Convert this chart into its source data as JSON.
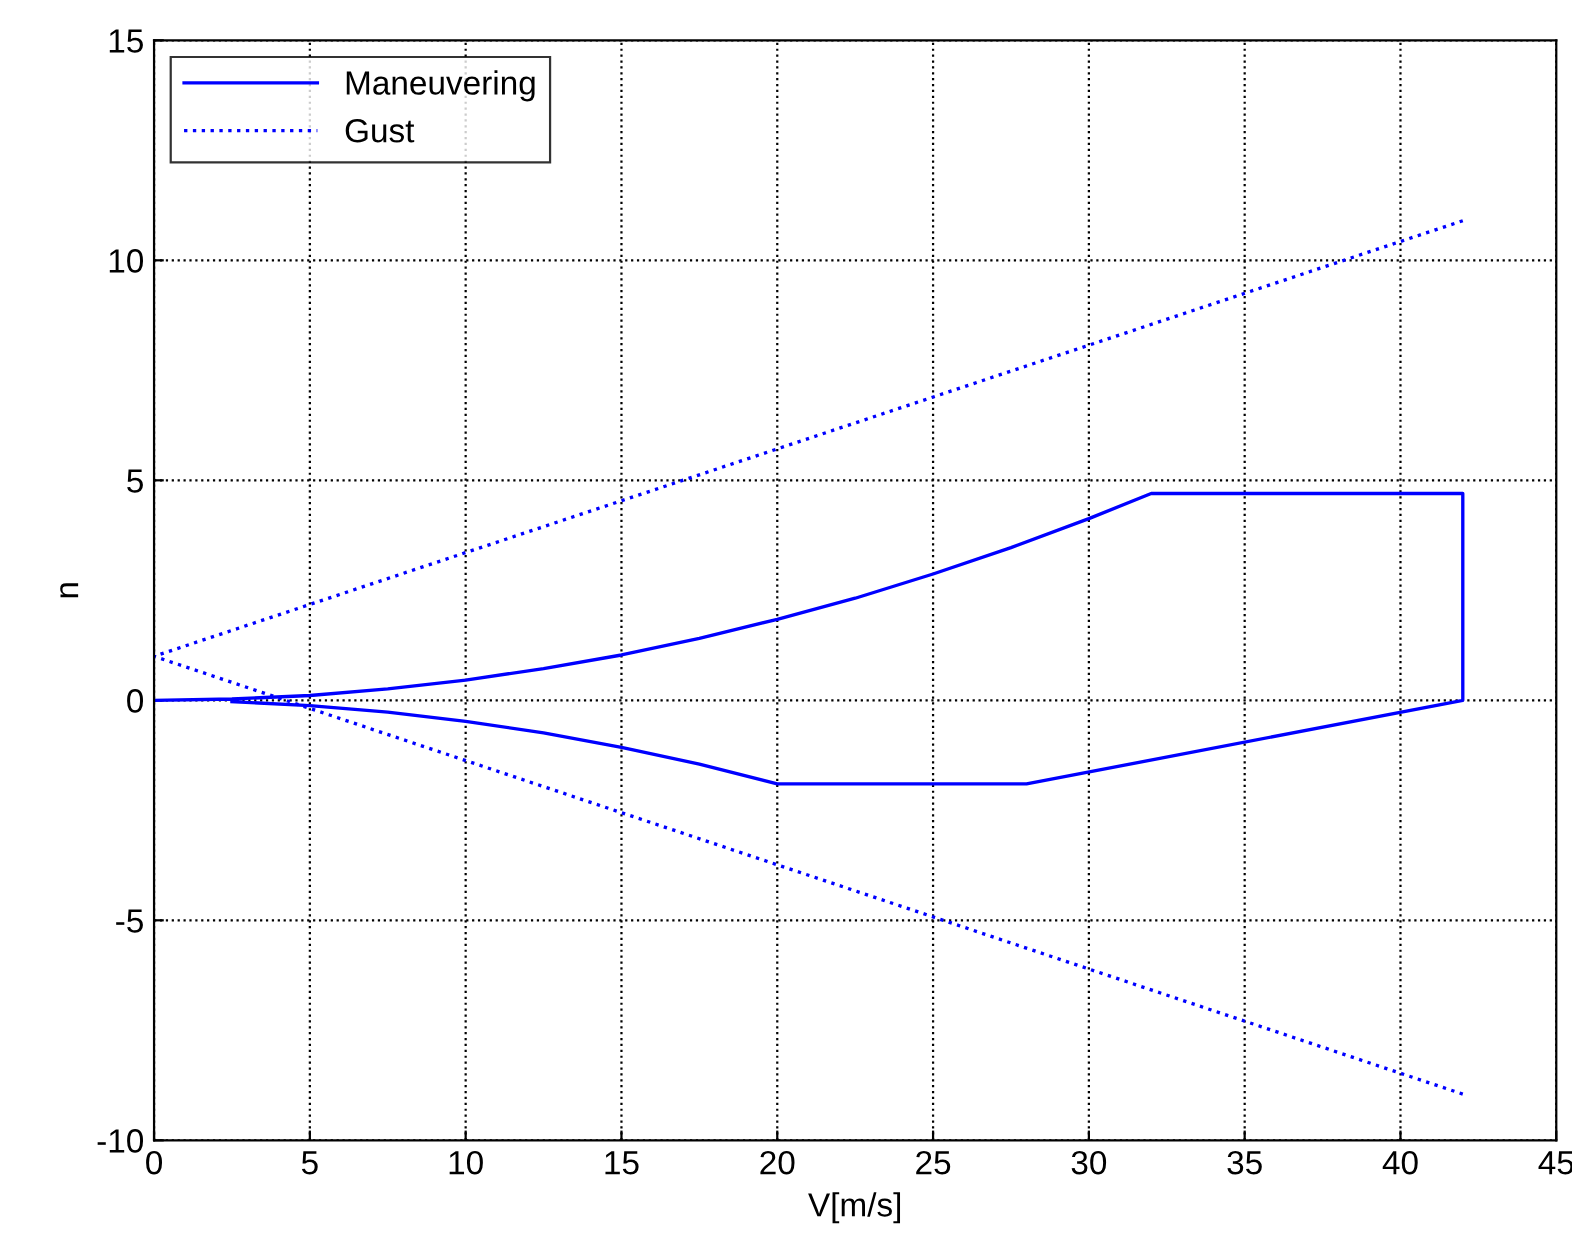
{
  "chart_data": {
    "type": "line",
    "xlabel": "V[m/s]",
    "ylabel": "n",
    "xlim": [
      0,
      45
    ],
    "xticks": [
      0,
      5,
      10,
      15,
      20,
      25,
      30,
      35,
      40,
      45
    ],
    "ylim": [
      -10,
      15
    ],
    "yticks": [
      -10,
      -5,
      0,
      5,
      10,
      15
    ],
    "grid": true,
    "legend": "top left",
    "marker": "none",
    "series": [
      {
        "name": "Maneuvering",
        "color": "#0000ff",
        "line_style": "solid",
        "x": [
          0,
          2.5,
          5,
          7.5,
          10,
          12.5,
          15,
          17.5,
          20,
          22.5,
          25,
          27.5,
          30,
          32,
          42,
          42,
          28,
          20,
          17.5,
          15,
          12.5,
          10,
          7.5,
          5,
          2.5
        ],
        "values": [
          0,
          0.03,
          0.11,
          0.26,
          0.46,
          0.72,
          1.03,
          1.41,
          1.84,
          2.32,
          2.87,
          3.47,
          4.13,
          4.7,
          4.7,
          0,
          -1.9,
          -1.9,
          -1.45,
          -1.07,
          -0.74,
          -0.48,
          -0.27,
          -0.12,
          -0.03
        ]
      },
      {
        "name": "Gust",
        "color": "#0000ff",
        "line_style": "dotted",
        "x": [
          42,
          0,
          42
        ],
        "values": [
          10.9,
          1,
          -8.95
        ]
      }
    ]
  }
}
